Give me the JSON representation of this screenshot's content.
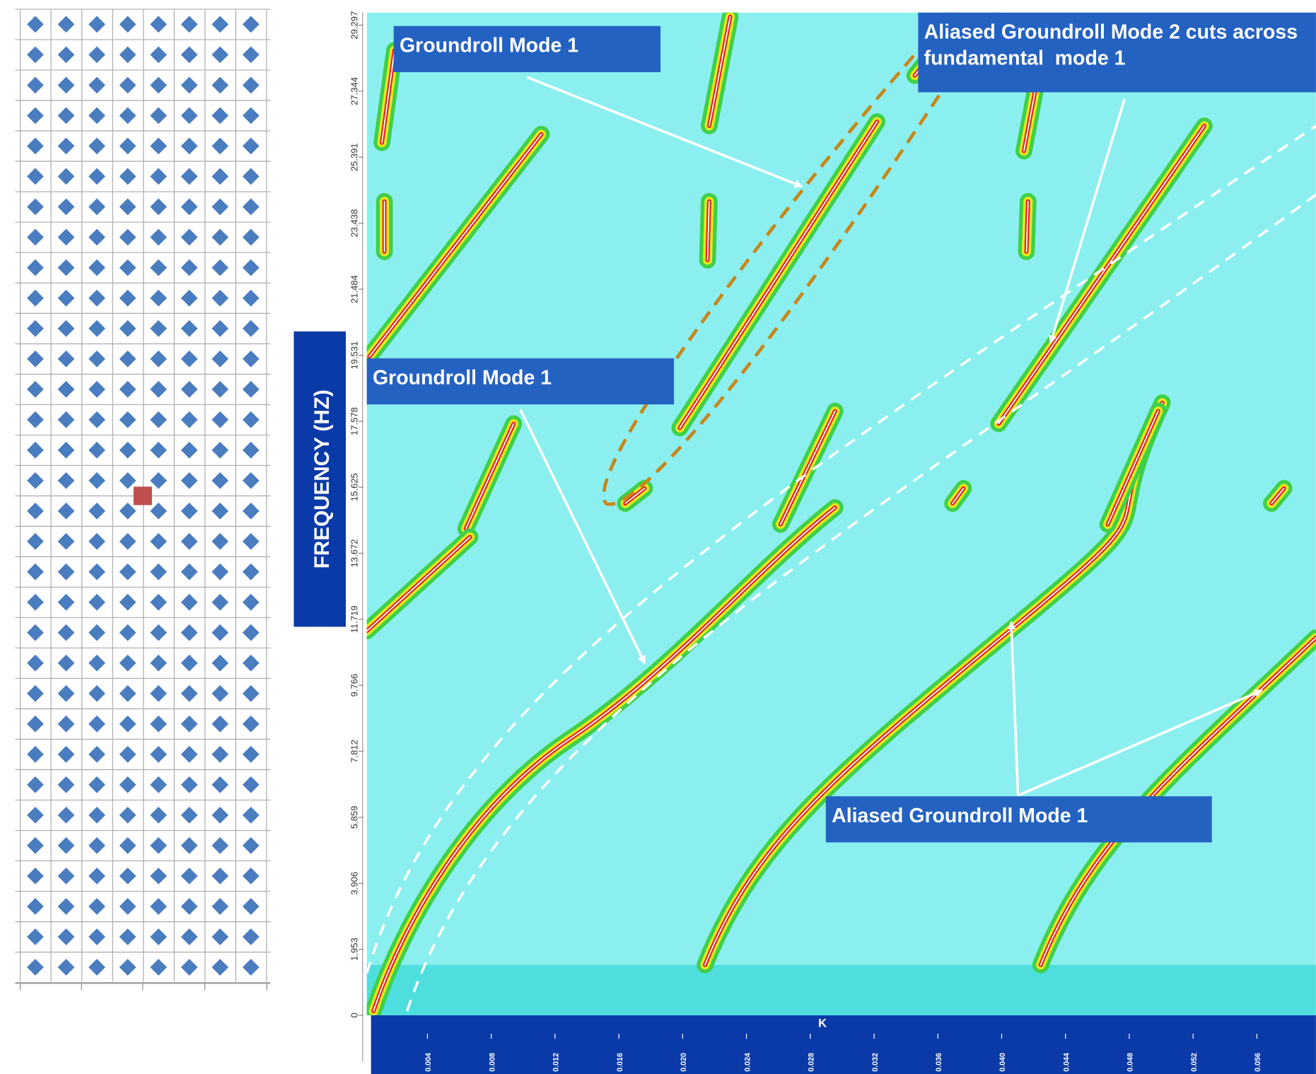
{
  "chart_data": {
    "type": "fk-spectrum",
    "y_label": "FREQUENCY (HZ)",
    "x_label": "K",
    "ylim": [
      0,
      29.67
    ],
    "yticks": [
      0,
      1.953,
      3.906,
      5.859,
      7.812,
      9.766,
      11.719,
      13.672,
      15.625,
      17.578,
      19.531,
      21.484,
      23.438,
      25.391,
      27.344,
      29.297
    ],
    "xlim": [
      0.0002,
      0.0597
    ],
    "xticks": [
      0.004,
      0.008,
      0.012,
      0.016,
      {
        "value": 0.02,
        "label": "0.020"
      },
      0.024,
      0.028,
      0.032,
      0.036,
      {
        "value": 0.04,
        "label": "0.040"
      },
      0.044,
      0.048,
      0.052,
      0.056
    ],
    "annotations": [
      [
        "Groundroll Mode 1"
      ],
      [
        "Groundroll Mode 1"
      ],
      [
        "Aliased Groundroll Mode 2 cuts across",
        "fundamental  mode 1"
      ],
      [
        "Aliased Groundroll Mode 1"
      ]
    ]
  }
}
